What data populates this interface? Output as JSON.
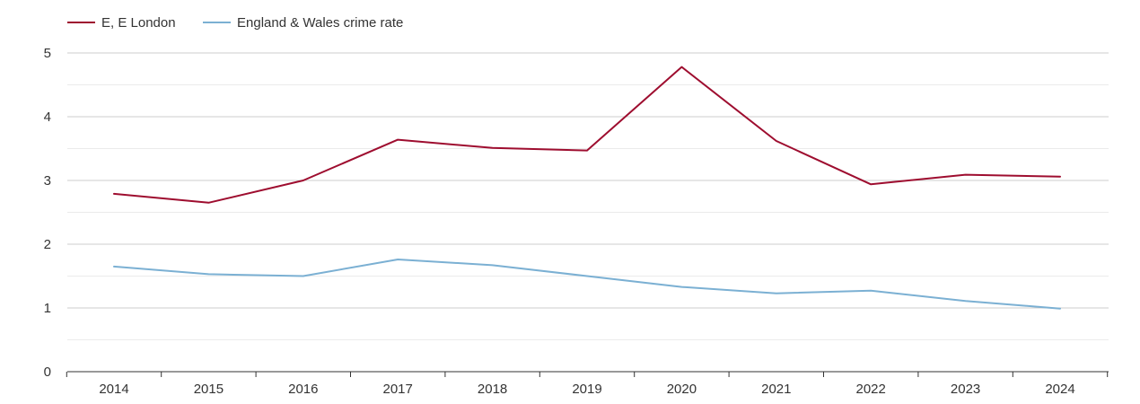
{
  "chart_data": {
    "type": "line",
    "title": "",
    "xlabel": "",
    "ylabel": "",
    "x": [
      "2014",
      "2015",
      "2016",
      "2017",
      "2018",
      "2019",
      "2020",
      "2021",
      "2022",
      "2023",
      "2024"
    ],
    "ylim": [
      0,
      5
    ],
    "yticks": [
      "0",
      "1",
      "2",
      "3",
      "4",
      "5"
    ],
    "grid": true,
    "legend_position": "top-left",
    "series": [
      {
        "name": "E, E London",
        "color": "#9e0d2f",
        "values": [
          2.79,
          2.65,
          3.0,
          3.64,
          3.51,
          3.47,
          4.78,
          3.62,
          2.94,
          3.09,
          3.06
        ]
      },
      {
        "name": "England & Wales crime rate",
        "color": "#7bb0d3",
        "values": [
          1.65,
          1.53,
          1.5,
          1.76,
          1.67,
          1.5,
          1.33,
          1.23,
          1.27,
          1.11,
          0.99
        ]
      }
    ]
  }
}
